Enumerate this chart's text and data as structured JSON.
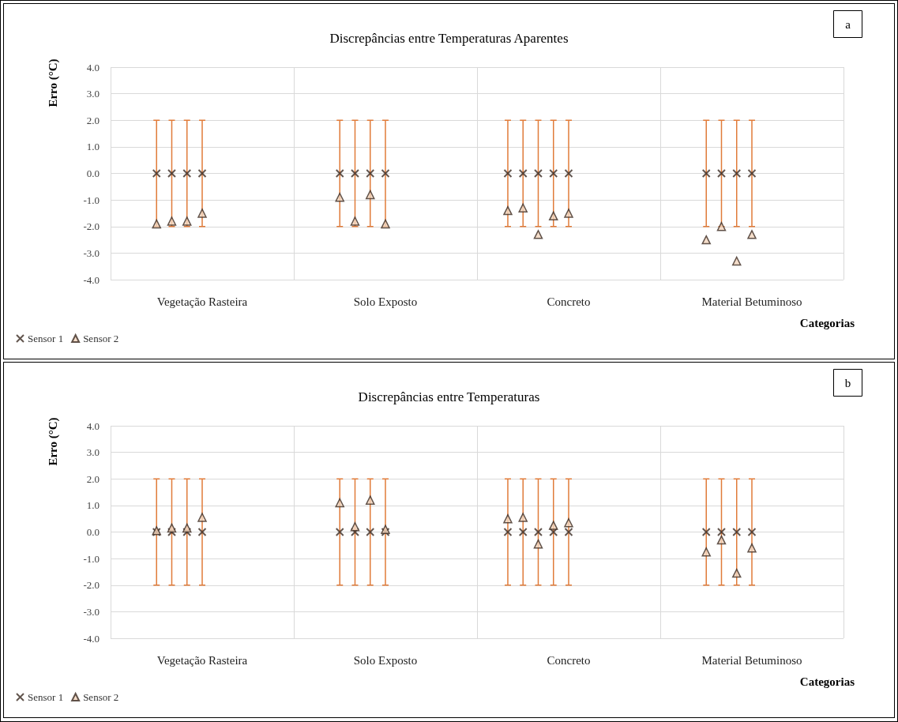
{
  "chart_data": [
    {
      "type": "scatter",
      "title": "Discrepâncias entre Temperaturas Aparentes",
      "ylabel": "Erro (°C)",
      "xlabel": "Categorias",
      "annotations": [
        "a"
      ],
      "categories": [
        "Vegetação Rasteira",
        "Solo Exposto",
        "Concreto",
        "Material Betuminoso"
      ],
      "ylim": [
        -4,
        4
      ],
      "yticks": [
        {
          "value": -4,
          "label": "-4.0"
        },
        {
          "value": -3,
          "label": "-3.0"
        },
        {
          "value": -2,
          "label": "-2.0"
        },
        {
          "value": -1,
          "label": "-1.0"
        },
        {
          "value": 0,
          "label": "0.0"
        },
        {
          "value": 1,
          "label": "1.0"
        },
        {
          "value": 2,
          "label": "2.0"
        },
        {
          "value": 3,
          "label": "3.0"
        },
        {
          "value": 4,
          "label": "4.0"
        }
      ],
      "grid": true,
      "legend": "bottom left",
      "series": [
        {
          "name": "Sensor 1",
          "color": "#3b2a22",
          "marker": "cross",
          "values": [
            0,
            0,
            0,
            0
          ],
          "errors": [
            2,
            2,
            2,
            2
          ]
        },
        {
          "name": "Sensor 2",
          "color": "#3b2a22",
          "marker": "triangle",
          "values": [
            -1.9,
            -0.9,
            -1.4,
            -2.5
          ]
        },
        {
          "color": "#3b2a22",
          "marker": "cross",
          "values": [
            0,
            0,
            0,
            0
          ],
          "errors": [
            2,
            2,
            2,
            2
          ]
        },
        {
          "color": "#3b2a22",
          "marker": "triangle",
          "values": [
            -1.8,
            -1.8,
            -1.3,
            -2.0
          ]
        },
        {
          "color": "#3b2a22",
          "marker": "cross",
          "values": [
            0,
            0,
            0,
            0
          ],
          "errors": [
            2,
            2,
            2,
            2
          ]
        },
        {
          "color": "#3b2a22",
          "marker": "triangle",
          "values": [
            -1.8,
            -0.8,
            -2.3,
            -3.3
          ]
        },
        {
          "color": "#3b2a22",
          "marker": "cross",
          "values": [
            0,
            0,
            0,
            0
          ],
          "errors": [
            2,
            2,
            2,
            2
          ]
        },
        {
          "color": "#3b2a22",
          "marker": "triangle",
          "values": [
            -1.5,
            -1.9,
            -1.6,
            -2.3
          ]
        },
        {
          "color": "#3b2a22",
          "marker": "cross",
          "values": [
            null,
            null,
            0,
            null
          ],
          "errors": [
            null,
            null,
            2,
            null
          ]
        },
        {
          "color": "#3b2a22",
          "marker": "triangle",
          "values": [
            null,
            null,
            -1.5,
            null
          ]
        }
      ]
    },
    {
      "type": "scatter",
      "title": "Discrepâncias entre Temperaturas",
      "ylabel": "Erro (°C)",
      "xlabel": "Categorias",
      "annotations": [
        "b"
      ],
      "categories": [
        "Vegetação Rasteira",
        "Solo Exposto",
        "Concreto",
        "Material Betuminoso"
      ],
      "ylim": [
        -4,
        4
      ],
      "yticks": [
        {
          "value": -4,
          "label": "-4.0"
        },
        {
          "value": -3,
          "label": "-3.0"
        },
        {
          "value": -2,
          "label": "-2.0"
        },
        {
          "value": -1,
          "label": "-1.0"
        },
        {
          "value": 0,
          "label": "0.0"
        },
        {
          "value": 1,
          "label": "1.0"
        },
        {
          "value": 2,
          "label": "2.0"
        },
        {
          "value": 3,
          "label": "3.0"
        },
        {
          "value": 4,
          "label": "4.0"
        }
      ],
      "grid": true,
      "legend": "bottom left",
      "series": [
        {
          "name": "Sensor 1",
          "color": "#3b2a22",
          "marker": "cross",
          "values": [
            0,
            0,
            0,
            0
          ],
          "errors": [
            2,
            2,
            2,
            2
          ]
        },
        {
          "name": "Sensor 2",
          "color": "#3b2a22",
          "marker": "triangle",
          "values": [
            0.05,
            1.1,
            0.5,
            -0.75
          ]
        },
        {
          "color": "#3b2a22",
          "marker": "cross",
          "values": [
            0,
            0,
            0,
            0
          ],
          "errors": [
            2,
            2,
            2,
            2
          ]
        },
        {
          "color": "#3b2a22",
          "marker": "triangle",
          "values": [
            0.15,
            0.2,
            0.55,
            -0.3
          ]
        },
        {
          "color": "#3b2a22",
          "marker": "cross",
          "values": [
            0,
            0,
            0,
            0
          ],
          "errors": [
            2,
            2,
            2,
            2
          ]
        },
        {
          "color": "#3b2a22",
          "marker": "triangle",
          "values": [
            0.15,
            1.2,
            -0.45,
            -1.55
          ]
        },
        {
          "color": "#3b2a22",
          "marker": "cross",
          "values": [
            0,
            0,
            0,
            0
          ],
          "errors": [
            2,
            2,
            2,
            2
          ]
        },
        {
          "color": "#3b2a22",
          "marker": "triangle",
          "values": [
            0.55,
            0.1,
            0.25,
            -0.6
          ]
        },
        {
          "color": "#3b2a22",
          "marker": "cross",
          "values": [
            null,
            null,
            0,
            null
          ],
          "errors": [
            null,
            null,
            2,
            null
          ]
        },
        {
          "color": "#3b2a22",
          "marker": "triangle",
          "values": [
            null,
            null,
            0.35,
            null
          ]
        }
      ]
    }
  ]
}
